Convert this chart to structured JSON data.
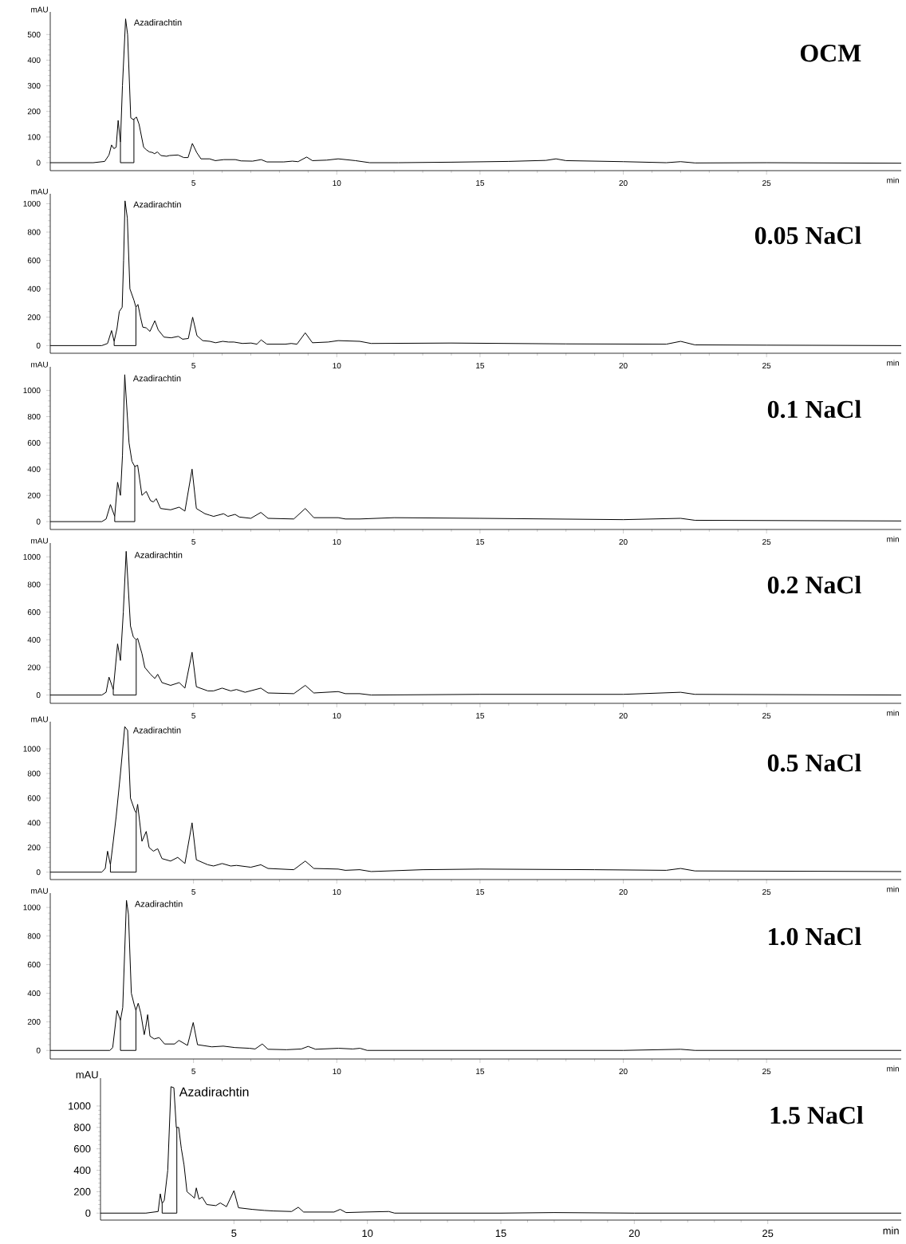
{
  "chart_data": [
    {
      "type": "line",
      "title": "OCM",
      "xlabel": "min",
      "ylabel": "mAU",
      "annotations": [
        {
          "text": "Azadirachtin",
          "x": 2.63,
          "y": 561
        }
      ],
      "xlim": [
        0,
        29.7
      ],
      "ylim": [
        -31,
        588
      ],
      "xticks": [
        5,
        10,
        15,
        20,
        25
      ],
      "yticks": [
        0,
        100,
        200,
        300,
        400,
        500
      ],
      "series": [
        {
          "color": "#000000",
          "x": [
            0,
            1.5,
            1.9,
            2.05,
            2.14,
            2.22,
            2.3,
            2.37,
            2.45,
            2.52,
            2.63,
            2.7,
            2.81,
            2.9,
            3.01,
            3.1,
            3.26,
            3.36,
            3.46,
            3.56,
            3.64,
            3.74,
            3.86,
            4.06,
            4.16,
            4.46,
            4.66,
            4.81,
            4.96,
            5.11,
            5.26,
            5.56,
            5.76,
            6.06,
            6.46,
            6.66,
            7.06,
            7.36,
            7.56,
            8.15,
            8.45,
            8.65,
            8.95,
            9.15,
            9.65,
            10.05,
            10.65,
            11.15,
            12.15,
            14,
            16,
            17.3,
            17.65,
            18,
            20,
            21.5,
            22,
            22.5,
            25,
            29.7
          ],
          "values": [
            0,
            0,
            5,
            30,
            69,
            55,
            60,
            165,
            80,
            300,
            561,
            500,
            175,
            168,
            178,
            150,
            60,
            50,
            42,
            40,
            35,
            42,
            28,
            25,
            28,
            30,
            20,
            20,
            75,
            40,
            15,
            15,
            8,
            12,
            12,
            7,
            6,
            12,
            3,
            3,
            6,
            4,
            22,
            8,
            10,
            15,
            8,
            0,
            0,
            2,
            5,
            9,
            15,
            8,
            4,
            0,
            4,
            -1,
            0,
            -2
          ]
        },
        {
          "color": "#000000",
          "x": [
            2.45,
            2.45,
            2.92,
            2.92
          ],
          "values": [
            80,
            0,
            0,
            170
          ]
        }
      ]
    },
    {
      "type": "line",
      "title": "0.05 NaCl",
      "xlabel": "min",
      "ylabel": "mAU",
      "annotations": [
        {
          "text": "Azadirachtin",
          "x": 2.61,
          "y": 1020
        }
      ],
      "xlim": [
        0,
        29.7
      ],
      "ylim": [
        -54,
        1070
      ],
      "xticks": [
        5,
        10,
        15,
        20,
        25
      ],
      "yticks": [
        0,
        200,
        400,
        600,
        800,
        1000
      ],
      "series": [
        {
          "color": "#000000",
          "x": [
            0,
            1.8,
            2.0,
            2.14,
            2.23,
            2.33,
            2.41,
            2.51,
            2.56,
            2.61,
            2.69,
            2.78,
            2.85,
            2.92,
            2.99,
            3.06,
            3.15,
            3.23,
            3.35,
            3.48,
            3.65,
            3.77,
            3.97,
            4.22,
            4.47,
            4.62,
            4.82,
            4.97,
            5.12,
            5.32,
            5.57,
            5.77,
            6.02,
            6.22,
            6.41,
            6.71,
            7.01,
            7.21,
            7.36,
            7.56,
            8.21,
            8.41,
            8.61,
            8.9,
            9.15,
            9.7,
            10.05,
            10.8,
            11.2,
            14,
            18,
            21.5,
            22,
            22.5,
            25,
            29.7
          ],
          "values": [
            0,
            0,
            15,
            106,
            30,
            120,
            240,
            270,
            600,
            1020,
            900,
            400,
            360,
            320,
            270,
            290,
            200,
            130,
            125,
            100,
            175,
            110,
            60,
            55,
            65,
            45,
            50,
            200,
            70,
            35,
            30,
            20,
            30,
            25,
            25,
            15,
            18,
            10,
            40,
            10,
            10,
            15,
            10,
            90,
            20,
            25,
            35,
            30,
            15,
            18,
            12,
            10,
            30,
            5,
            3,
            0
          ]
        },
        {
          "color": "#000000",
          "x": [
            2.23,
            2.23,
            2.99,
            2.99
          ],
          "values": [
            30,
            0,
            0,
            270
          ]
        }
      ]
    },
    {
      "type": "line",
      "title": "0.1 NaCl",
      "xlabel": "min",
      "ylabel": "mAU",
      "annotations": [
        {
          "text": "Azadirachtin",
          "x": 2.6,
          "y": 1120
        }
      ],
      "xlim": [
        0,
        29.7
      ],
      "ylim": [
        -60,
        1180
      ],
      "xticks": [
        5,
        10,
        15,
        20,
        25
      ],
      "yticks": [
        0,
        200,
        400,
        600,
        800,
        1000
      ],
      "series": [
        {
          "color": "#000000",
          "x": [
            0,
            1.8,
            1.95,
            2.1,
            2.25,
            2.35,
            2.45,
            2.52,
            2.6,
            2.75,
            2.85,
            2.95,
            3.05,
            3.2,
            3.35,
            3.5,
            3.6,
            3.7,
            3.85,
            4.2,
            4.5,
            4.7,
            4.95,
            5.1,
            5.4,
            5.55,
            5.7,
            6.05,
            6.2,
            6.45,
            6.6,
            7.0,
            7.35,
            7.6,
            8.5,
            8.9,
            9.2,
            10.05,
            10.3,
            10.8,
            12,
            15,
            20,
            22,
            22.5,
            29.7
          ],
          "values": [
            0,
            0,
            20,
            130,
            40,
            300,
            200,
            500,
            1120,
            600,
            460,
            420,
            430,
            200,
            230,
            160,
            150,
            175,
            100,
            90,
            110,
            80,
            400,
            100,
            60,
            50,
            40,
            60,
            40,
            55,
            35,
            25,
            70,
            25,
            20,
            100,
            30,
            30,
            20,
            20,
            30,
            25,
            15,
            25,
            10,
            5
          ]
        },
        {
          "color": "#000000",
          "x": [
            2.25,
            2.25,
            2.95,
            2.95
          ],
          "values": [
            40,
            0,
            0,
            420
          ]
        }
      ]
    },
    {
      "type": "line",
      "title": "0.2 NaCl",
      "xlabel": "min",
      "ylabel": "mAU",
      "annotations": [
        {
          "text": "Azadirachtin",
          "x": 2.65,
          "y": 1040
        }
      ],
      "xlim": [
        0,
        29.7
      ],
      "ylim": [
        -60,
        1100
      ],
      "xticks": [
        5,
        10,
        15,
        20,
        25
      ],
      "yticks": [
        0,
        200,
        400,
        600,
        800,
        1000
      ],
      "series": [
        {
          "color": "#000000",
          "x": [
            0,
            1.8,
            1.95,
            2.05,
            2.2,
            2.35,
            2.45,
            2.55,
            2.65,
            2.8,
            2.9,
            3.0,
            3.05,
            3.2,
            3.3,
            3.5,
            3.65,
            3.75,
            3.9,
            4.2,
            4.5,
            4.7,
            4.95,
            5.1,
            5.5,
            5.7,
            6.0,
            6.3,
            6.5,
            6.8,
            7.35,
            7.6,
            8.5,
            8.9,
            9.2,
            10.05,
            10.3,
            10.8,
            11.2,
            15,
            20,
            22,
            22.5,
            29.7
          ],
          "values": [
            0,
            0,
            20,
            130,
            40,
            370,
            250,
            600,
            1040,
            500,
            420,
            400,
            410,
            300,
            200,
            150,
            120,
            150,
            90,
            70,
            90,
            50,
            310,
            60,
            30,
            30,
            50,
            30,
            40,
            20,
            50,
            15,
            10,
            70,
            15,
            25,
            10,
            10,
            0,
            5,
            5,
            20,
            5,
            0
          ]
        },
        {
          "color": "#000000",
          "x": [
            2.2,
            2.2,
            3.0,
            3.0
          ],
          "values": [
            40,
            0,
            0,
            400
          ]
        }
      ]
    },
    {
      "type": "line",
      "title": "0.5 NaCl",
      "xlabel": "min",
      "ylabel": "mAU",
      "annotations": [
        {
          "text": "Azadirachtin",
          "x": 2.6,
          "y": 1180
        }
      ],
      "xlim": [
        0,
        29.7
      ],
      "ylim": [
        -60,
        1220
      ],
      "xticks": [
        5,
        10,
        15,
        20,
        25
      ],
      "yticks": [
        0,
        200,
        400,
        600,
        800,
        1000
      ],
      "series": [
        {
          "color": "#000000",
          "x": [
            0,
            1.8,
            1.92,
            2.0,
            2.1,
            2.2,
            2.3,
            2.45,
            2.6,
            2.7,
            2.8,
            2.95,
            3.0,
            3.05,
            3.2,
            3.35,
            3.45,
            3.6,
            3.75,
            3.9,
            4.2,
            4.45,
            4.7,
            4.95,
            5.1,
            5.5,
            5.7,
            6.0,
            6.3,
            6.5,
            7.0,
            7.35,
            7.6,
            8.5,
            8.9,
            9.2,
            10.05,
            10.3,
            10.8,
            11.2,
            13,
            15,
            19,
            21.5,
            22,
            22.5,
            29.7
          ],
          "values": [
            0,
            0,
            30,
            170,
            60,
            250,
            450,
            800,
            1180,
            1150,
            600,
            500,
            480,
            550,
            250,
            330,
            200,
            170,
            190,
            110,
            90,
            120,
            70,
            400,
            100,
            60,
            50,
            70,
            50,
            55,
            40,
            60,
            30,
            20,
            90,
            30,
            25,
            15,
            20,
            5,
            20,
            25,
            20,
            15,
            30,
            10,
            5
          ]
        },
        {
          "color": "#000000",
          "x": [
            2.1,
            2.1,
            3.0,
            3.0
          ],
          "values": [
            60,
            0,
            0,
            480
          ]
        }
      ]
    },
    {
      "type": "line",
      "title": "1.0 NaCl",
      "xlabel": "min",
      "ylabel": "mAU",
      "annotations": [
        {
          "text": "Azadirachtin",
          "x": 2.66,
          "y": 1050
        }
      ],
      "xlim": [
        0,
        29.7
      ],
      "ylim": [
        -60,
        1100
      ],
      "xticks": [
        5,
        10,
        15,
        20,
        25
      ],
      "yticks": [
        0,
        200,
        400,
        600,
        800,
        1000
      ],
      "series": [
        {
          "color": "#000000",
          "x": [
            0,
            2.08,
            2.18,
            2.33,
            2.45,
            2.53,
            2.66,
            2.73,
            2.83,
            2.93,
            2.99,
            3.07,
            3.16,
            3.28,
            3.33,
            3.4,
            3.48,
            3.63,
            3.8,
            3.99,
            4.34,
            4.49,
            4.79,
            4.99,
            5.14,
            5.64,
            6.04,
            6.45,
            6.95,
            7.15,
            7.4,
            7.6,
            8.25,
            8.76,
            9.0,
            9.26,
            10.06,
            10.56,
            10.81,
            11.06,
            15,
            20,
            22,
            22.5,
            29.7
          ],
          "values": [
            0,
            0,
            20,
            280,
            210,
            300,
            1050,
            950,
            400,
            320,
            280,
            330,
            260,
            110,
            160,
            250,
            100,
            80,
            90,
            45,
            45,
            70,
            35,
            195,
            40,
            25,
            30,
            20,
            15,
            10,
            45,
            8,
            5,
            10,
            28,
            8,
            15,
            10,
            15,
            0,
            0,
            0,
            8,
            0,
            0
          ]
        },
        {
          "color": "#000000",
          "x": [
            2.45,
            2.45,
            2.99,
            2.99
          ],
          "values": [
            210,
            0,
            0,
            280
          ]
        }
      ]
    },
    {
      "type": "line",
      "title": "1.5 NaCl",
      "xlabel": "min",
      "ylabel": "mAU",
      "annotations": [
        {
          "text": "Azadirachtin",
          "x": 2.64,
          "y": 1180
        }
      ],
      "xlim": [
        0,
        30
      ],
      "ylim": [
        -65,
        1260
      ],
      "xticks": [
        5,
        10,
        15,
        20,
        25
      ],
      "yticks": [
        0,
        200,
        400,
        600,
        800,
        1000
      ],
      "series": [
        {
          "color": "#000000",
          "x": [
            0,
            1.7,
            2.16,
            2.24,
            2.31,
            2.39,
            2.52,
            2.64,
            2.75,
            2.84,
            2.93,
            3.03,
            3.13,
            3.24,
            3.43,
            3.52,
            3.59,
            3.69,
            3.81,
            3.98,
            4.32,
            4.49,
            4.72,
            5.0,
            5.17,
            5.68,
            6.14,
            6.48,
            7.16,
            7.41,
            7.61,
            8.75,
            8.98,
            9.2,
            9.89,
            10.8,
            11.02,
            15,
            17,
            20,
            25,
            30
          ],
          "values": [
            0,
            0,
            15,
            180,
            90,
            120,
            400,
            1180,
            1170,
            800,
            800,
            600,
            450,
            200,
            160,
            140,
            235,
            130,
            150,
            80,
            70,
            95,
            60,
            210,
            50,
            35,
            25,
            20,
            15,
            55,
            10,
            10,
            35,
            5,
            10,
            15,
            0,
            0,
            5,
            0,
            0,
            0
          ]
        },
        {
          "color": "#000000",
          "x": [
            2.31,
            2.31,
            2.86,
            2.86
          ],
          "values": [
            90,
            0,
            0,
            800
          ]
        }
      ]
    }
  ]
}
